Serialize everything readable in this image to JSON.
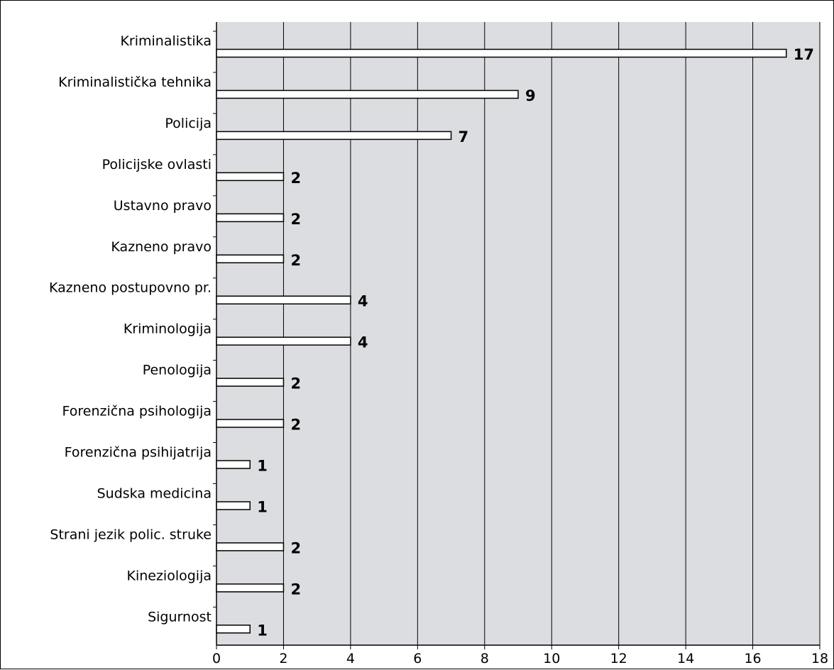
{
  "chart_data": {
    "type": "bar",
    "orientation": "horizontal",
    "categories": [
      "Kriminalistika",
      "Kriminalistička tehnika",
      "Policija",
      "Policijske ovlasti",
      "Ustavno pravo",
      "Kazneno pravo",
      "Kazneno postupovno pr.",
      "Kriminologija",
      "Penologija",
      "Forenzična psihologija",
      "Forenzična psihijatrija",
      "Sudska medicina",
      "Strani jezik polic. struke",
      "Kineziologija",
      "Sigurnost"
    ],
    "values": [
      17,
      9,
      7,
      2,
      2,
      2,
      4,
      4,
      2,
      2,
      1,
      1,
      2,
      2,
      1
    ],
    "xlim": [
      0,
      18
    ],
    "xticks": [
      0,
      2,
      4,
      6,
      8,
      10,
      12,
      14,
      16,
      18
    ],
    "grid": true,
    "data_labels": true,
    "title": "",
    "xlabel": "",
    "ylabel": "",
    "colors": {
      "plot_background": "#dcdde1",
      "bar_fill": "#ffffff",
      "bar_stroke": "#000000",
      "grid": "#000000"
    }
  }
}
